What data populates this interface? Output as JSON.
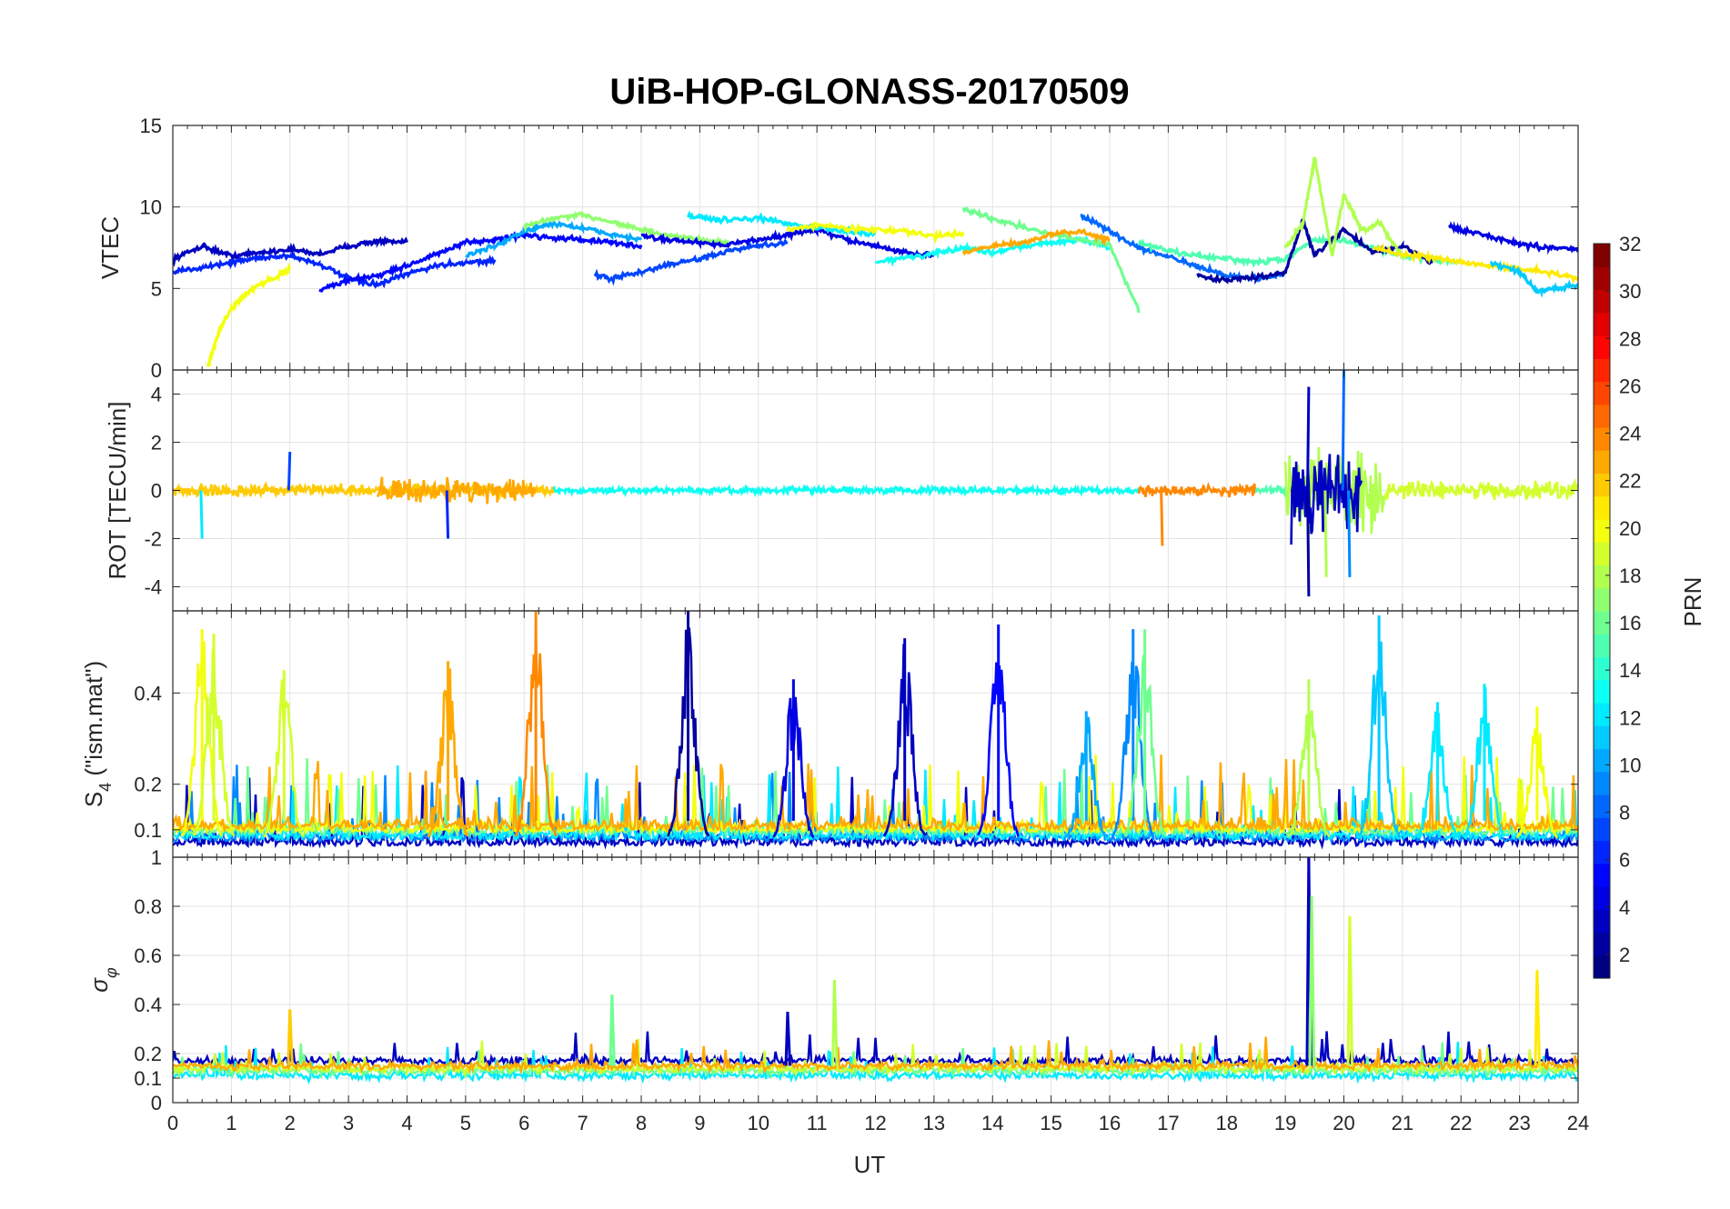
{
  "chart_data": {
    "type": "line",
    "title": "UiB-HOP-GLONASS-20170509",
    "xlabel": "UT",
    "xlim": [
      0,
      24
    ],
    "xticks": [
      0,
      1,
      2,
      3,
      4,
      5,
      6,
      7,
      8,
      9,
      10,
      11,
      12,
      13,
      14,
      15,
      16,
      17,
      18,
      19,
      20,
      21,
      22,
      23,
      24
    ],
    "grid": true,
    "panels": [
      {
        "id": "vtec",
        "ylabel": "VTEC",
        "ylim": [
          0,
          15
        ],
        "yticks": [
          0,
          5,
          10,
          15
        ],
        "series": [
          {
            "name": "PRN 3",
            "prn": 3,
            "x": [
              0,
              0.5,
              1,
              1.5,
              2,
              2.5,
              3,
              3.5,
              4
            ],
            "y": [
              6.8,
              7.6,
              7.0,
              7.2,
              7.4,
              7.1,
              7.6,
              7.9,
              7.8
            ]
          },
          {
            "name": "PRN 6",
            "prn": 6,
            "x": [
              0,
              0.5,
              1,
              1.5,
              2,
              2.5,
              3,
              3.5,
              4,
              4.5,
              5,
              5.5
            ],
            "y": [
              6.0,
              6.3,
              6.6,
              6.9,
              7.0,
              6.5,
              5.6,
              5.2,
              5.9,
              6.4,
              6.6,
              6.7
            ]
          },
          {
            "name": "PRN 5",
            "prn": 5,
            "x": [
              2.5,
              3,
              3.5,
              4,
              4.5,
              5,
              5.5,
              6,
              6.5,
              7,
              7.5,
              8
            ],
            "y": [
              4.9,
              5.5,
              5.8,
              6.4,
              7.1,
              7.8,
              8.0,
              8.3,
              8.1,
              8.0,
              7.8,
              7.6
            ]
          },
          {
            "name": "PRN 10",
            "prn": 10,
            "x": [
              5,
              5.5,
              6,
              6.5,
              7,
              7.5,
              8
            ],
            "y": [
              7.0,
              7.6,
              8.5,
              9.0,
              8.7,
              8.3,
              8.0
            ]
          },
          {
            "name": "PRN 17",
            "prn": 17,
            "x": [
              6,
              6.5,
              7,
              7.5,
              8,
              8.5,
              9,
              9.5
            ],
            "y": [
              8.8,
              9.3,
              9.5,
              9.1,
              8.6,
              8.2,
              8.0,
              7.8
            ]
          },
          {
            "name": "PRN 7",
            "prn": 7,
            "x": [
              7.2,
              7.5,
              8,
              8.5,
              9,
              9.5,
              10,
              10.5
            ],
            "y": [
              5.8,
              5.6,
              6.0,
              6.5,
              6.8,
              7.3,
              7.6,
              7.8
            ]
          },
          {
            "name": "PRN 4",
            "prn": 4,
            "x": [
              8,
              8.5,
              9,
              9.5,
              10,
              10.5,
              11,
              11.5,
              12,
              12.5,
              13
            ],
            "y": [
              8.2,
              8.0,
              7.8,
              7.7,
              8.0,
              8.3,
              8.6,
              8.0,
              7.6,
              7.2,
              7.0
            ]
          },
          {
            "name": "PRN 12",
            "prn": 12,
            "x": [
              8.8,
              9.3,
              10,
              10.5,
              11,
              11.5,
              12
            ],
            "y": [
              9.5,
              9.2,
              9.3,
              9.0,
              8.7,
              8.5,
              8.3
            ]
          },
          {
            "name": "PRN 20",
            "prn": 20,
            "x": [
              10.5,
              11,
              11.5,
              12,
              12.5,
              13,
              13.5
            ],
            "y": [
              8.6,
              8.9,
              8.7,
              8.6,
              8.5,
              8.2,
              8.4
            ]
          },
          {
            "name": "PRN 13",
            "prn": 13,
            "x": [
              12,
              12.5,
              13,
              13.5,
              14,
              14.5,
              15,
              15.5,
              16
            ],
            "y": [
              6.6,
              6.9,
              7.1,
              7.5,
              7.2,
              7.6,
              7.8,
              8.0,
              7.5
            ]
          },
          {
            "name": "PRN 16",
            "prn": 16,
            "x": [
              13.5,
              14,
              14.5,
              15,
              15.5,
              16,
              16.5
            ],
            "y": [
              9.9,
              9.3,
              8.8,
              8.3,
              8.0,
              7.7,
              3.6
            ]
          },
          {
            "name": "PRN 23",
            "prn": 23,
            "x": [
              13.5,
              14,
              14.5,
              15,
              15.5,
              16
            ],
            "y": [
              7.2,
              7.6,
              7.8,
              8.3,
              8.5,
              8.0
            ]
          },
          {
            "name": "PRN 8",
            "prn": 8,
            "x": [
              15.5,
              16,
              16.5,
              17,
              17.5,
              18,
              18.5,
              19
            ],
            "y": [
              9.5,
              8.5,
              7.5,
              7.0,
              6.3,
              5.8,
              5.6,
              5.9
            ]
          },
          {
            "name": "PRN 15",
            "prn": 15,
            "x": [
              16.5,
              17,
              17.5,
              18,
              18.5,
              19,
              19.5,
              20,
              20.5,
              21,
              21.5,
              22
            ],
            "y": [
              7.8,
              7.3,
              7.0,
              6.8,
              6.6,
              6.8,
              8.0,
              7.9,
              7.5,
              7.0,
              6.8,
              6.6
            ]
          },
          {
            "name": "PRN 2",
            "prn": 2,
            "x": [
              17.5,
              18,
              18.5,
              19,
              19.3,
              19.5,
              20,
              20.5,
              21,
              21.5
            ],
            "y": [
              5.8,
              5.5,
              5.7,
              6.0,
              9.2,
              7.0,
              8.6,
              7.2,
              7.6,
              6.6
            ]
          },
          {
            "name": "PRN 18",
            "prn": 18,
            "x": [
              19,
              19.3,
              19.5,
              19.8,
              20,
              20.3,
              20.6,
              21
            ],
            "y": [
              7.5,
              9.0,
              13.0,
              7.0,
              10.8,
              8.5,
              9.0,
              7.0
            ]
          },
          {
            "name": "PRN 4b",
            "prn": 4,
            "x": [
              21.8,
              22,
              22.5,
              23,
              23.5,
              24
            ],
            "y": [
              8.8,
              8.6,
              8.2,
              7.7,
              7.5,
              7.4
            ]
          },
          {
            "name": "PRN 21",
            "prn": 21,
            "x": [
              20.5,
              21,
              21.5,
              22,
              22.5,
              23,
              23.5,
              24
            ],
            "y": [
              7.5,
              7.1,
              6.9,
              6.6,
              6.4,
              6.2,
              6.0,
              5.6
            ]
          },
          {
            "name": "PRN 20b",
            "prn": 20,
            "x": [
              0.6,
              0.8,
              1,
              1.2,
              1.5,
              1.8,
              2
            ],
            "y": [
              0.2,
              2.5,
              3.8,
              4.5,
              5.3,
              5.8,
              6.2
            ]
          },
          {
            "name": "PRN 11",
            "prn": 11,
            "x": [
              22.5,
              23,
              23.3,
              23.6,
              24
            ],
            "y": [
              6.6,
              6.0,
              4.8,
              5.0,
              5.2
            ]
          }
        ]
      },
      {
        "id": "rot",
        "ylabel": "ROT [TECU/min]",
        "ylim": [
          -5,
          5
        ],
        "yticks": [
          -4,
          -2,
          0,
          2,
          4
        ],
        "bursts": [
          {
            "x0": 0,
            "x1": 6.5,
            "amp": 0.35,
            "prn": 22
          },
          {
            "x0": 3.5,
            "x1": 6.2,
            "amp": 0.7,
            "prn": 23
          },
          {
            "x0": 6.5,
            "x1": 16.5,
            "amp": 0.2,
            "prn": 13
          },
          {
            "x0": 16.5,
            "x1": 18.5,
            "amp": 0.35,
            "prn": 24
          },
          {
            "x0": 18.5,
            "x1": 19.0,
            "amp": 0.3,
            "prn": 15
          },
          {
            "x0": 19.0,
            "x1": 20.7,
            "amp": 2.2,
            "prn": 18
          },
          {
            "x0": 19.1,
            "x1": 20.3,
            "amp": 2.6,
            "prn": 3
          },
          {
            "x0": 20.7,
            "x1": 24,
            "amp": 0.5,
            "prn": 19
          }
        ],
        "peaks": [
          {
            "x": 0.5,
            "y": -2.0,
            "prn": 12
          },
          {
            "x": 2.0,
            "y": 1.6,
            "prn": 7
          },
          {
            "x": 4.7,
            "y": -2.0,
            "prn": 6
          },
          {
            "x": 16.9,
            "y": -2.3,
            "prn": 24
          },
          {
            "x": 19.4,
            "y": -4.4,
            "prn": 2
          },
          {
            "x": 19.4,
            "y": 4.3,
            "prn": 3
          },
          {
            "x": 19.7,
            "y": -3.6,
            "prn": 18
          },
          {
            "x": 20.0,
            "y": 5.0,
            "prn": 8
          },
          {
            "x": 20.1,
            "y": -3.6,
            "prn": 9
          }
        ]
      },
      {
        "id": "s4",
        "ylabel": "S4 (\"ism.mat\")",
        "ylim": [
          0.04,
          0.58
        ],
        "yticks": [
          0.1,
          0.2,
          0.4
        ],
        "spikes": [
          {
            "x": 0.5,
            "y": 0.54,
            "prn": 20
          },
          {
            "x": 0.7,
            "y": 0.53,
            "prn": 19
          },
          {
            "x": 1.9,
            "y": 0.45,
            "prn": 19
          },
          {
            "x": 4.7,
            "y": 0.47,
            "prn": 23
          },
          {
            "x": 6.2,
            "y": 0.58,
            "prn": 24
          },
          {
            "x": 8.8,
            "y": 0.58,
            "prn": 2
          },
          {
            "x": 10.6,
            "y": 0.43,
            "prn": 4
          },
          {
            "x": 12.5,
            "y": 0.52,
            "prn": 3
          },
          {
            "x": 14.1,
            "y": 0.55,
            "prn": 5
          },
          {
            "x": 15.6,
            "y": 0.36,
            "prn": 10
          },
          {
            "x": 16.4,
            "y": 0.54,
            "prn": 9
          },
          {
            "x": 16.6,
            "y": 0.54,
            "prn": 16
          },
          {
            "x": 19.4,
            "y": 0.43,
            "prn": 18
          },
          {
            "x": 20.6,
            "y": 0.57,
            "prn": 11
          },
          {
            "x": 21.6,
            "y": 0.38,
            "prn": 12
          },
          {
            "x": 22.4,
            "y": 0.42,
            "prn": 12
          },
          {
            "x": 23.3,
            "y": 0.37,
            "prn": 20
          }
        ]
      },
      {
        "id": "sigma",
        "ylabel": "σφ",
        "ylim": [
          0,
          1
        ],
        "yticks": [
          0,
          0.1,
          0.2,
          0.4,
          0.6,
          0.8,
          1
        ],
        "spikes": [
          {
            "x": 2.0,
            "y": 0.38,
            "prn": 22
          },
          {
            "x": 7.5,
            "y": 0.44,
            "prn": 16
          },
          {
            "x": 10.5,
            "y": 0.37,
            "prn": 3
          },
          {
            "x": 11.3,
            "y": 0.5,
            "prn": 18
          },
          {
            "x": 19.4,
            "y": 1.0,
            "prn": 3
          },
          {
            "x": 19.45,
            "y": 0.84,
            "prn": 17
          },
          {
            "x": 20.1,
            "y": 0.76,
            "prn": 19
          },
          {
            "x": 23.3,
            "y": 0.54,
            "prn": 21
          }
        ]
      }
    ],
    "colorbar": {
      "label": "PRN",
      "range": [
        1,
        32
      ],
      "ticks": [
        2,
        4,
        6,
        8,
        10,
        12,
        14,
        16,
        18,
        20,
        22,
        24,
        26,
        28,
        30,
        32
      ],
      "colormap": "jet"
    }
  }
}
